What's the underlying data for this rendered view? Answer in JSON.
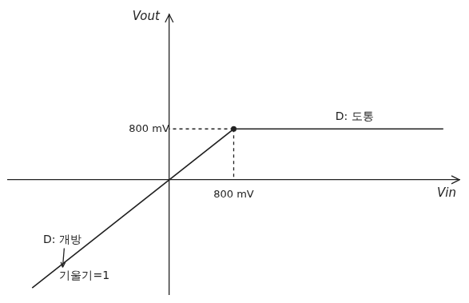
{
  "chart_data": {
    "type": "line",
    "x_label": "Vin",
    "y_label": "Vout",
    "x": [
      -1700,
      800,
      3400
    ],
    "values": [
      -1700,
      800,
      800
    ],
    "color": "#222222",
    "xlim": [
      -2000,
      3600
    ],
    "ylim": [
      -1800,
      2600
    ],
    "xticks": [
      {
        "value": 800,
        "label": "800 mV"
      }
    ],
    "yticks": [
      {
        "value": 800,
        "label": "800 mV"
      }
    ],
    "grid": false,
    "annotations": [
      "D: 도통",
      "D: 개방",
      "기울기=1"
    ]
  }
}
